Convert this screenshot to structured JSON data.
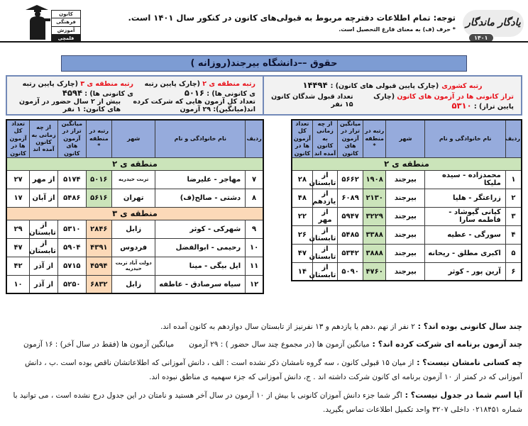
{
  "header": {
    "notice_line1": "توجه: تمام اطلاعات دفترچه مربوط به قبولی‌های کانون در کنکور سال ۱۴۰۱ است.",
    "notice_line2": "* حرف (ف) به معنای فارغ التحصیل است.",
    "logo_right": {
      "title": "یادگار ماندگار",
      "year": "۱۴۰۱"
    },
    "logo_left": {
      "lines": [
        "کانون",
        "فرهنگی",
        "آموزش"
      ],
      "footer": "قلمچی"
    }
  },
  "title": "حقوق ––دانشگاه بیرجند(روزانه )",
  "stats": {
    "national": {
      "label": "رتبه کشوری",
      "paren": "(چارک پایین قبولی های کانون) :",
      "value": "۱۴۴۹۴"
    },
    "taraz": {
      "label": "تراز کانونی ها در آزمون های کانون",
      "paren": "(چارک پایین تراز) :",
      "value": "۵۳۱۰"
    },
    "accepted": "تعداد قبول شدگان کانون ۱۵ نفر",
    "region2": {
      "label": "رتبه منطقه ی ۲",
      "paren": "(چارک پایین رتبه ی کانونی ها) :",
      "value": "۵۰۱۶"
    },
    "region3": {
      "label": "رتبه منطقه ی ۳",
      "paren": "(چارک پایین رتبه ی کانونی ها) :",
      "value": "۴۵۹۴"
    },
    "exams_total": "تعداد کل آزمون هایی که شرکت کرده اند(میانگین): ۲۹ آزمون",
    "two_years": "بیش از ۲ سال حضور در آزمون های کانون: ۱ نفر"
  },
  "table": {
    "headers": [
      "ردیف",
      "نام خانوادگی و نام",
      "شهر",
      "رتبه در منطقه *",
      "میانگین تراز در آزمون های کانون",
      "از چه زمانی به کانون آمده اند",
      "تعداد کل آزمون ها در کانون"
    ],
    "region2_band": "منطقه ی ۲",
    "region3_band": "منطقه ی ۳",
    "rows_region2_right": [
      [
        "۱",
        "محمدزاده - سیده ملیکا",
        "بیرجند",
        "۱۹۰۸",
        "۵۶۶۲",
        "از تابستان",
        "۲۸"
      ],
      [
        "۲",
        "زراعتگر - هلیا",
        "بیرجند",
        "۲۱۳۰",
        "۶۰۸۹",
        "از یازدهم",
        "۴۸"
      ],
      [
        "۳",
        "کیانی گیوشاد - فاطمه سارا",
        "بیرجند",
        "۳۲۲۹",
        "۵۹۴۷",
        "از مهر",
        "۲۲"
      ],
      [
        "۴",
        "سورگی - عطیه",
        "بیرجند",
        "۳۳۸۸",
        "۵۴۸۵",
        "از تابستان",
        "۲۶"
      ],
      [
        "۵",
        "اکبری مطلق - ریحانه",
        "بیرجند",
        "۳۸۸۸",
        "۵۳۴۲",
        "از تابستان",
        "۴۷"
      ],
      [
        "۶",
        "آرین پور - کوثر",
        "بیرجند",
        "۴۷۶۰",
        "۵۰۹۰",
        "از تابستان",
        "۱۴"
      ]
    ],
    "rows_region2_left": [
      [
        "۷",
        "مهاجر - علیرضا",
        "تربت حیدریه",
        "۵۰۱۶",
        "۵۱۷۴",
        "از مهر",
        "۲۷"
      ],
      [
        "۸",
        "دشتی - صالح(ف)",
        "تهران",
        "۵۶۱۶",
        "۵۴۸۶",
        "از آبان",
        "۱۷"
      ]
    ],
    "rows_region3_left": [
      [
        "۹",
        "شهرکی - کوثر",
        "زابل",
        "۲۸۴۶",
        "۵۳۱۰",
        "از تابستان",
        "۲۹"
      ],
      [
        "۱۰",
        "رحیمی - ابوالفضل",
        "فردوس",
        "۴۳۹۱",
        "۵۹۰۴",
        "از تابستان",
        "۴۷"
      ],
      [
        "۱۱",
        "ایل بیگی - مینا",
        "دولت آباد تربت حیدریه",
        "۴۵۹۴",
        "۵۷۱۵",
        "از آذر",
        "۴۲"
      ],
      [
        "۱۲",
        "سیاه سرصادق - عاطفه",
        "زابل",
        "۶۸۳۲",
        "۵۲۵۰",
        "از آذر",
        "۱۰"
      ]
    ]
  },
  "footer": {
    "notes": [
      {
        "q": "چند سال کانونی بوده اند؟ :",
        "a": "۲ نفر از نهم ،دهم یا یازدهم و ۱۳ نفرنیز از تابستان سال دوازدهم به کانون آمده اند."
      },
      {
        "q": "چند آزمون برنامه ای شرکت کرده اند؟ :",
        "a": "میانگین آزمون ها (در مجموع چند سال حضور ) : ۲۹ آزمون  میانگین آزمون ها (فقط در سال آخر) : ۱۶ آزمون"
      },
      {
        "q": "چه کسانی نامشان نیست؟ :",
        "a": "از میان ۱۵ قبولی کانون ، سه گروه نامشان ذکر نشده است : الف ، دانش آموزانی که اطلاعاتشان ناقص بوده است .ب ، دانش آموزانی که در کمتر از ۱۰ آزمون برنامه ای کانون شرکت داشته اند . ج، دانش آموزانی که جزء سهمیه ی مناطق نبوده اند."
      },
      {
        "q": "آیا اسم شما در جدول نیست؟ :",
        "a": "اگر شما جزء دانش آموزان کانونی با بیش از ۱۰ آزمون در سال آخر هستید و نامتان در این جدول درج نشده است ، می توانید با شماره ۰۲۱۸۴۵۱ داخلی ۳۲۰۷ واحد تکمیل اطلاعات تماس بگیرید."
      }
    ]
  },
  "colors": {
    "title_blue": "#7d9cd3",
    "header_blue": "#96abdc",
    "region2_green": "#cbe4ba",
    "region3_peach": "#fcd9b8",
    "red": "#e8111a"
  }
}
